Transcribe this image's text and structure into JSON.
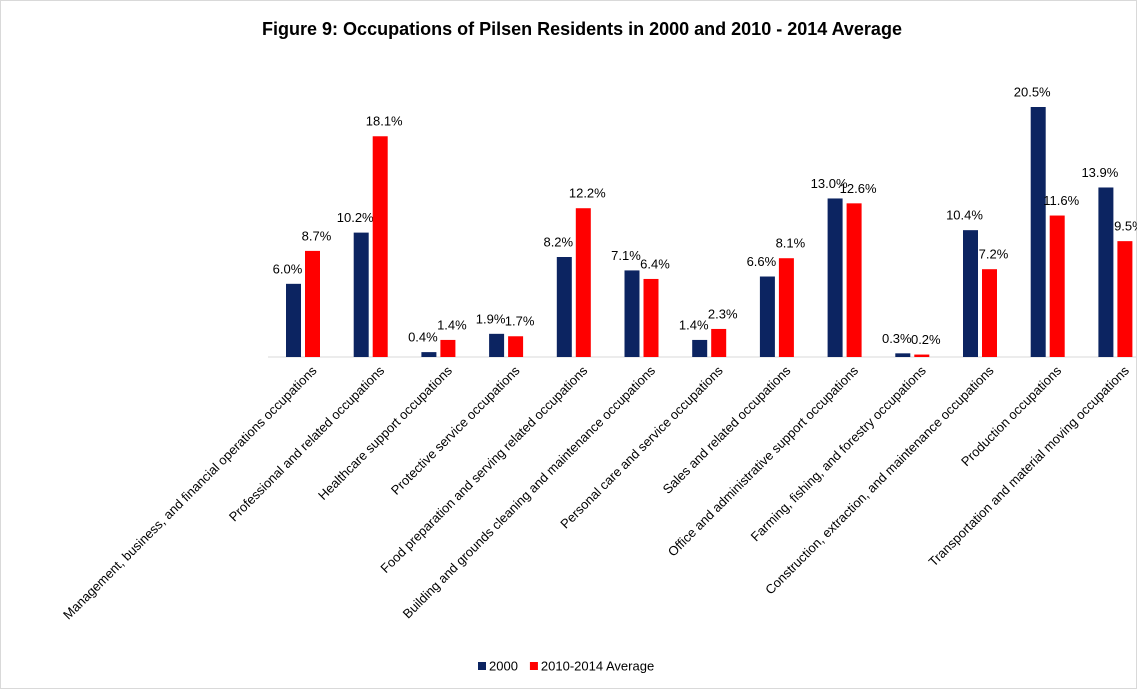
{
  "chart_data": {
    "type": "bar",
    "title": "Figure 9: Occupations of Pilsen Residents in 2000 and 2010 - 2014 Average",
    "categories": [
      "Management, business, and financial operations occupations",
      "Professional and related occupations",
      "Healthcare support occupations",
      "Protective service occupations",
      "Food preparation and serving related occupations",
      "Building and grounds cleaning and maintenance occupations",
      "Personal care and service occupations",
      "Sales and related occupations",
      "Office and administrative support occupations",
      "Farming, fishing, and forestry occupations",
      "Construction, extraction, and maintenance occupations",
      "Production occupations",
      "Transportation and material moving occupations"
    ],
    "series": [
      {
        "name": "2000",
        "color": "#0c2461",
        "values": [
          6.0,
          10.2,
          0.4,
          1.9,
          8.2,
          7.1,
          1.4,
          6.6,
          13.0,
          0.3,
          10.4,
          20.5,
          13.9
        ],
        "value_labels": [
          "6.0%",
          "10.2%",
          "0.4%",
          "1.9%",
          "8.2%",
          "7.1%",
          "1.4%",
          "6.6%",
          "13.0%",
          "0.3%",
          "10.4%",
          "20.5%",
          "13.9%"
        ]
      },
      {
        "name": "2010-2014 Average",
        "color": "#ff0000",
        "values": [
          8.7,
          18.1,
          1.4,
          1.7,
          12.2,
          6.4,
          2.3,
          8.1,
          12.6,
          0.2,
          7.2,
          11.6,
          9.5
        ],
        "value_labels": [
          "8.7%",
          "18.1%",
          "1.4%",
          "1.7%",
          "12.2%",
          "6.4%",
          "2.3%",
          "8.1%",
          "12.6%",
          "0.2%",
          "7.2%",
          "11.6%",
          "9.5%"
        ]
      }
    ],
    "legend": "bottom"
  }
}
